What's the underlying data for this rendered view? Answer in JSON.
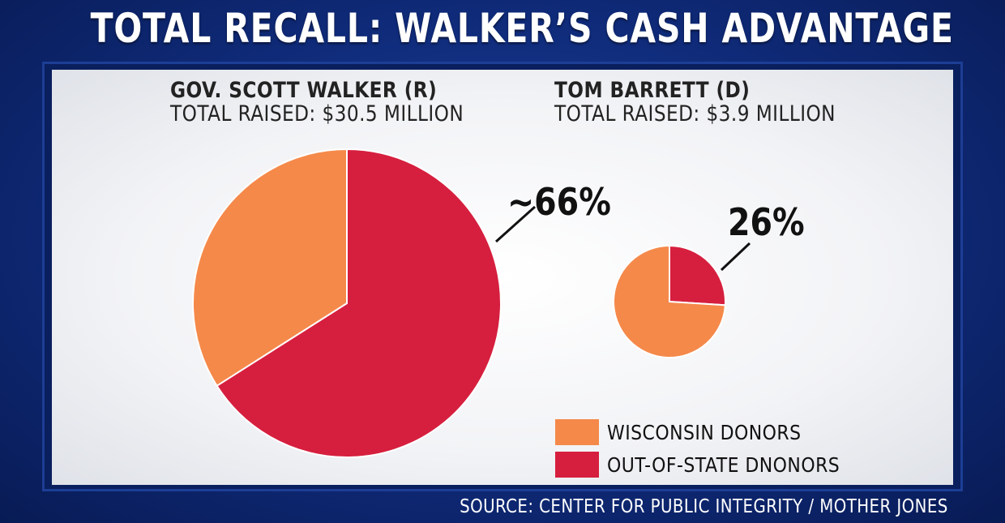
{
  "title": "TOTAL RECALL: WALKER’S CASH ADVANTAGE",
  "source": "SOURCE: CENTER FOR PUBLIC INTEGRITY / MOTHER JONES",
  "colors": {
    "wisconsin": "#f5894a",
    "out_of_state": "#d61f3e"
  },
  "chart_data": [
    {
      "type": "pie",
      "name": "GOV. SCOTT WALKER (R)",
      "subtitle": "TOTAL RAISED: $30.5 MILLION",
      "total_raised_million": 30.5,
      "categories": [
        "WISCONSIN DONORS",
        "OUT-OF-STATE DNONORS"
      ],
      "values": [
        34,
        66
      ],
      "annotation": "~66%"
    },
    {
      "type": "pie",
      "name": "TOM BARRETT (D)",
      "subtitle": "TOTAL RAISED: $3.9 MILLION",
      "total_raised_million": 3.9,
      "categories": [
        "WISCONSIN DONORS",
        "OUT-OF-STATE DNONORS"
      ],
      "values": [
        74,
        26
      ],
      "annotation": "26%"
    }
  ],
  "legend": [
    {
      "label": "WISCONSIN DONORS",
      "color": "#f5894a"
    },
    {
      "label": "OUT-OF-STATE DNONORS",
      "color": "#d61f3e"
    }
  ]
}
